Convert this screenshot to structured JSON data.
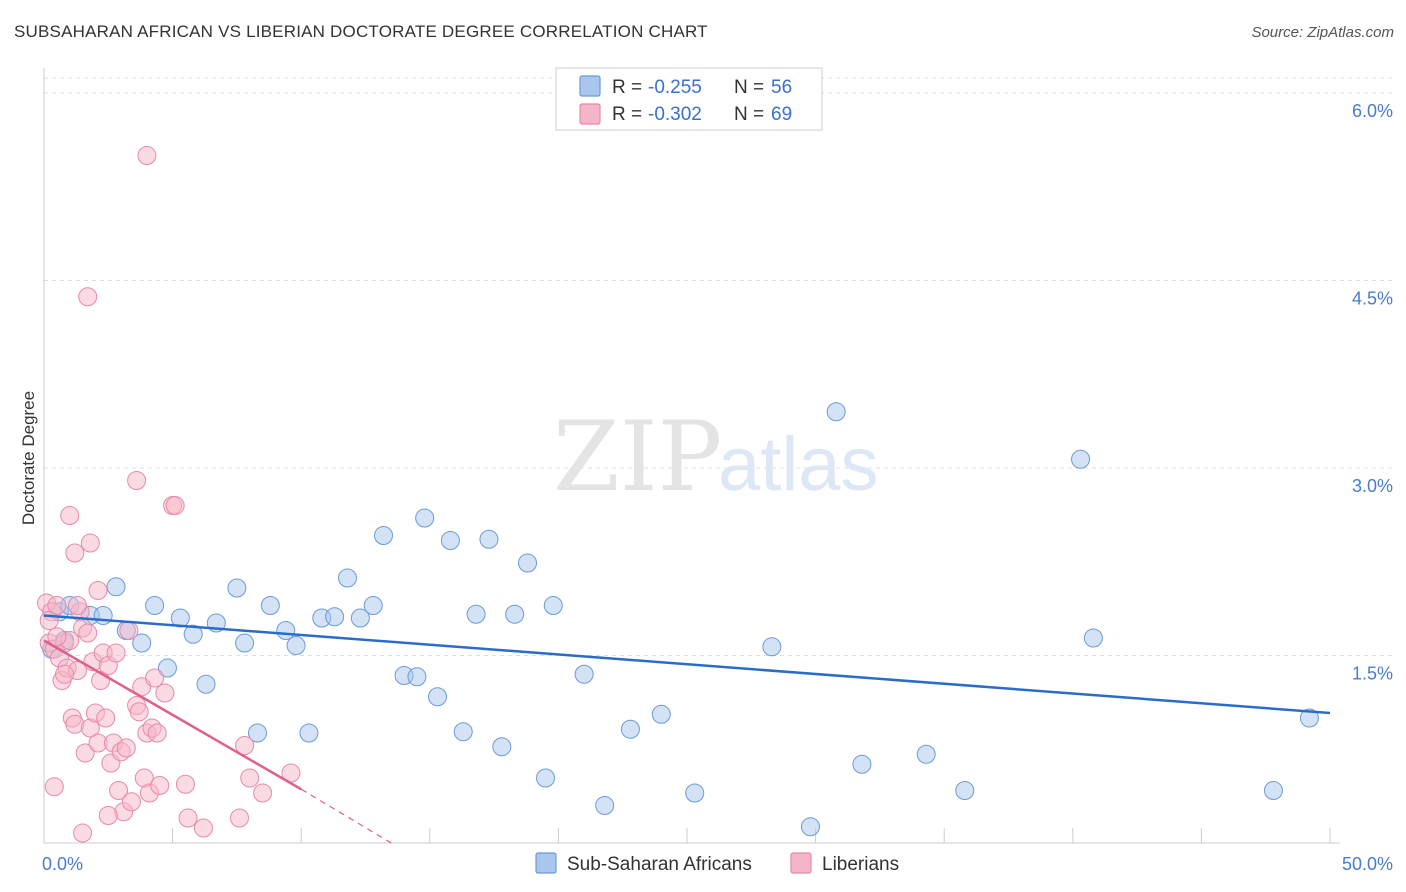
{
  "title": "SUBSAHARAN AFRICAN VS LIBERIAN DOCTORATE DEGREE CORRELATION CHART",
  "source": "Source: ZipAtlas.com",
  "watermark": {
    "part1": "ZIP",
    "part2": "atlas"
  },
  "colors": {
    "blue_fill": "#a9c6ec",
    "blue_stroke": "#6b9bd8",
    "blue_line": "#2a6dc9",
    "pink_fill": "#f5b5c8",
    "pink_stroke": "#e88aa8",
    "pink_line": "#e0608a",
    "axis_text": "#4a7cc9",
    "grid": "#dddddd"
  },
  "legend": {
    "r_label": "R =",
    "n_label": "N =",
    "series": [
      {
        "r": "-0.255",
        "n": "56"
      },
      {
        "r": "-0.302",
        "n": "69"
      }
    ]
  },
  "chart_data": {
    "type": "scatter",
    "title": "SUBSAHARAN AFRICAN VS LIBERIAN DOCTORATE DEGREE CORRELATION CHART",
    "xlabel": "",
    "ylabel": "Doctorate Degree",
    "xlim": [
      0,
      50
    ],
    "ylim": [
      0,
      6.2
    ],
    "x_ticks": [
      {
        "value": 0,
        "label": "0.0%"
      },
      {
        "value": 50,
        "label": "50.0%"
      }
    ],
    "y_ticks": [
      {
        "value": 1.5,
        "label": "1.5%"
      },
      {
        "value": 3.0,
        "label": "3.0%"
      },
      {
        "value": 4.5,
        "label": "4.5%"
      },
      {
        "value": 6.0,
        "label": "6.0%"
      }
    ],
    "grid": true,
    "legend_position": "top-center",
    "series": [
      {
        "name": "Sub-Saharan Africans",
        "r": -0.255,
        "n": 56,
        "trend": {
          "x1": 0,
          "y1": 1.82,
          "x2": 50,
          "y2": 1.04
        },
        "points": [
          [
            0.3,
            1.55
          ],
          [
            0.6,
            1.85
          ],
          [
            1.0,
            1.9
          ],
          [
            1.8,
            1.82
          ],
          [
            2.8,
            2.05
          ],
          [
            2.3,
            1.82
          ],
          [
            3.2,
            1.7
          ],
          [
            3.8,
            1.6
          ],
          [
            4.3,
            1.9
          ],
          [
            4.8,
            1.4
          ],
          [
            5.3,
            1.8
          ],
          [
            5.8,
            1.67
          ],
          [
            6.3,
            1.27
          ],
          [
            6.7,
            1.76
          ],
          [
            7.5,
            2.04
          ],
          [
            7.8,
            1.6
          ],
          [
            8.3,
            0.88
          ],
          [
            8.8,
            1.9
          ],
          [
            9.4,
            1.7
          ],
          [
            9.8,
            1.58
          ],
          [
            10.3,
            0.88
          ],
          [
            10.8,
            1.8
          ],
          [
            11.3,
            1.81
          ],
          [
            11.8,
            2.12
          ],
          [
            12.3,
            1.8
          ],
          [
            12.8,
            1.9
          ],
          [
            13.2,
            2.46
          ],
          [
            14.0,
            1.34
          ],
          [
            14.5,
            1.33
          ],
          [
            14.8,
            2.6
          ],
          [
            15.3,
            1.17
          ],
          [
            15.8,
            2.42
          ],
          [
            16.3,
            0.89
          ],
          [
            16.8,
            1.83
          ],
          [
            17.3,
            2.43
          ],
          [
            17.8,
            0.77
          ],
          [
            18.3,
            1.83
          ],
          [
            18.8,
            2.24
          ],
          [
            19.5,
            0.52
          ],
          [
            19.8,
            1.9
          ],
          [
            21.0,
            1.35
          ],
          [
            21.8,
            0.3
          ],
          [
            22.8,
            0.91
          ],
          [
            24.0,
            1.03
          ],
          [
            25.3,
            0.4
          ],
          [
            28.3,
            1.57
          ],
          [
            29.8,
            0.13
          ],
          [
            30.8,
            3.45
          ],
          [
            31.8,
            0.63
          ],
          [
            34.3,
            0.71
          ],
          [
            35.8,
            0.42
          ],
          [
            40.3,
            3.07
          ],
          [
            40.8,
            1.64
          ],
          [
            47.8,
            0.42
          ],
          [
            49.2,
            1.0
          ],
          [
            0.8,
            1.62
          ]
        ]
      },
      {
        "name": "Liberians",
        "r": -0.302,
        "n": 69,
        "trend": {
          "x1": 0,
          "y1": 1.62,
          "x2": 10,
          "y2": 0.43,
          "dash_x2": 13.5,
          "dash_y2": 0.0
        },
        "points": [
          [
            0.1,
            1.92
          ],
          [
            0.2,
            1.6
          ],
          [
            0.3,
            1.85
          ],
          [
            0.4,
            1.55
          ],
          [
            0.5,
            1.9
          ],
          [
            0.6,
            1.48
          ],
          [
            0.7,
            1.3
          ],
          [
            0.8,
            1.6
          ],
          [
            0.9,
            1.4
          ],
          [
            1.0,
            1.62
          ],
          [
            1.1,
            1.0
          ],
          [
            1.2,
            0.95
          ],
          [
            1.3,
            1.38
          ],
          [
            1.4,
            1.85
          ],
          [
            1.5,
            1.72
          ],
          [
            1.6,
            0.72
          ],
          [
            1.7,
            1.68
          ],
          [
            1.8,
            0.92
          ],
          [
            1.9,
            1.45
          ],
          [
            2.0,
            1.04
          ],
          [
            2.1,
            0.8
          ],
          [
            2.2,
            1.3
          ],
          [
            2.3,
            1.52
          ],
          [
            2.4,
            1.0
          ],
          [
            2.5,
            1.42
          ],
          [
            2.6,
            0.64
          ],
          [
            2.7,
            0.8
          ],
          [
            2.8,
            1.52
          ],
          [
            2.9,
            0.42
          ],
          [
            3.0,
            0.73
          ],
          [
            3.1,
            0.25
          ],
          [
            3.2,
            0.76
          ],
          [
            3.3,
            1.7
          ],
          [
            3.4,
            0.33
          ],
          [
            3.6,
            1.1
          ],
          [
            3.7,
            1.05
          ],
          [
            3.8,
            1.25
          ],
          [
            3.9,
            0.52
          ],
          [
            4.0,
            0.88
          ],
          [
            4.1,
            0.4
          ],
          [
            4.2,
            0.92
          ],
          [
            4.3,
            1.32
          ],
          [
            4.4,
            0.88
          ],
          [
            4.5,
            0.46
          ],
          [
            4.7,
            1.2
          ],
          [
            5.0,
            2.7
          ],
          [
            5.5,
            0.47
          ],
          [
            5.6,
            0.2
          ],
          [
            7.6,
            0.2
          ],
          [
            7.8,
            0.78
          ],
          [
            8.0,
            0.52
          ],
          [
            8.5,
            0.4
          ],
          [
            9.6,
            0.56
          ],
          [
            1.0,
            2.62
          ],
          [
            1.2,
            2.32
          ],
          [
            1.8,
            2.4
          ],
          [
            2.1,
            2.02
          ],
          [
            3.6,
            2.9
          ],
          [
            5.1,
            2.7
          ],
          [
            4.0,
            5.5
          ],
          [
            1.7,
            4.37
          ],
          [
            0.5,
            1.65
          ],
          [
            1.5,
            0.08
          ],
          [
            0.2,
            1.78
          ],
          [
            0.8,
            1.35
          ],
          [
            1.3,
            1.9
          ],
          [
            2.5,
            0.22
          ],
          [
            6.2,
            0.12
          ],
          [
            0.4,
            0.45
          ]
        ]
      }
    ]
  }
}
